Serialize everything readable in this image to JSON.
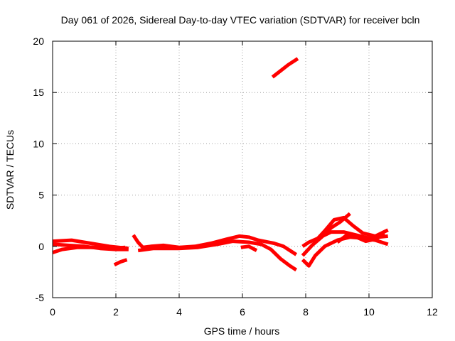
{
  "chart_data": {
    "type": "line",
    "title": "Day 061 of 2026, Sidereal Day-to-day VTEC variation (SDTVAR) for receiver bcln",
    "xlabel": "GPS time / hours",
    "ylabel": "SDTVAR / TECUs",
    "xlim": [
      0,
      12
    ],
    "ylim": [
      -5,
      20
    ],
    "xticks": [
      "0",
      "2",
      "4",
      "6",
      "8",
      "10",
      "12"
    ],
    "yticks": [
      "-5",
      "0",
      "5",
      "10",
      "15",
      "20"
    ],
    "grid": true,
    "color": "#ff0000",
    "series": [
      {
        "name": "trace-a",
        "points": [
          [
            0.0,
            0.2
          ],
          [
            0.5,
            0.1
          ],
          [
            1.0,
            0.0
          ],
          [
            1.5,
            -0.2
          ],
          [
            2.0,
            -0.3
          ],
          [
            2.4,
            -0.3
          ]
        ]
      },
      {
        "name": "trace-b",
        "points": [
          [
            0.0,
            -0.6
          ],
          [
            0.3,
            -0.3
          ],
          [
            0.8,
            -0.1
          ],
          [
            1.3,
            -0.1
          ],
          [
            1.8,
            -0.2
          ],
          [
            2.3,
            -0.1
          ]
        ]
      },
      {
        "name": "trace-c",
        "points": [
          [
            0.0,
            0.5
          ],
          [
            0.6,
            0.6
          ],
          [
            1.2,
            0.3
          ],
          [
            1.8,
            0.0
          ],
          [
            2.4,
            -0.2
          ]
        ]
      },
      {
        "name": "trace-d",
        "points": [
          [
            1.95,
            -1.8
          ],
          [
            2.15,
            -1.5
          ],
          [
            2.35,
            -1.3
          ]
        ]
      },
      {
        "name": "trace-e",
        "points": [
          [
            2.55,
            1.1
          ],
          [
            2.7,
            0.4
          ],
          [
            2.85,
            -0.1
          ],
          [
            3.1,
            0.0
          ],
          [
            3.5,
            0.1
          ],
          [
            4.0,
            -0.1
          ],
          [
            4.5,
            0.0
          ],
          [
            5.0,
            0.3
          ],
          [
            5.5,
            0.7
          ],
          [
            5.9,
            1.0
          ],
          [
            6.2,
            0.9
          ],
          [
            6.5,
            0.6
          ],
          [
            7.0,
            0.3
          ],
          [
            7.3,
            0.0
          ],
          [
            7.5,
            -0.4
          ],
          [
            7.7,
            -0.8
          ]
        ]
      },
      {
        "name": "trace-f",
        "points": [
          [
            2.7,
            -0.4
          ],
          [
            3.2,
            -0.2
          ],
          [
            4.0,
            -0.2
          ],
          [
            4.6,
            -0.1
          ],
          [
            5.2,
            0.2
          ],
          [
            5.7,
            0.5
          ],
          [
            6.2,
            0.4
          ],
          [
            6.6,
            0.2
          ],
          [
            6.9,
            -0.3
          ],
          [
            7.2,
            -1.2
          ],
          [
            7.5,
            -1.9
          ],
          [
            7.7,
            -2.3
          ]
        ]
      },
      {
        "name": "trace-g",
        "points": [
          [
            5.95,
            -0.1
          ],
          [
            6.2,
            0.0
          ],
          [
            6.45,
            -0.4
          ]
        ]
      },
      {
        "name": "trace-h",
        "points": [
          [
            6.95,
            16.5
          ],
          [
            7.2,
            17.1
          ],
          [
            7.45,
            17.7
          ],
          [
            7.75,
            18.3
          ]
        ]
      },
      {
        "name": "trace-i",
        "points": [
          [
            7.9,
            -1.3
          ],
          [
            8.1,
            -1.9
          ],
          [
            8.3,
            -0.9
          ],
          [
            8.6,
            0.0
          ],
          [
            9.0,
            0.6
          ],
          [
            9.4,
            0.9
          ],
          [
            9.8,
            0.8
          ],
          [
            10.2,
            0.6
          ],
          [
            10.6,
            0.2
          ]
        ]
      },
      {
        "name": "trace-j",
        "points": [
          [
            7.9,
            0.0
          ],
          [
            8.1,
            0.4
          ],
          [
            8.4,
            0.8
          ],
          [
            8.8,
            1.4
          ],
          [
            9.2,
            1.4
          ],
          [
            9.6,
            1.1
          ],
          [
            10.0,
            0.8
          ],
          [
            10.3,
            0.9
          ],
          [
            10.6,
            1.0
          ]
        ]
      },
      {
        "name": "trace-k",
        "points": [
          [
            7.9,
            -0.9
          ],
          [
            8.2,
            0.1
          ],
          [
            8.5,
            0.9
          ],
          [
            8.8,
            1.8
          ],
          [
            9.1,
            2.4
          ],
          [
            9.4,
            3.2
          ]
        ]
      },
      {
        "name": "trace-l",
        "points": [
          [
            8.3,
            0.5
          ],
          [
            8.6,
            1.5
          ],
          [
            8.9,
            2.6
          ],
          [
            9.2,
            2.8
          ],
          [
            9.5,
            2.0
          ],
          [
            9.8,
            1.3
          ],
          [
            10.2,
            1.0
          ],
          [
            10.6,
            1.6
          ]
        ]
      },
      {
        "name": "trace-m",
        "points": [
          [
            9.0,
            0.4
          ],
          [
            9.3,
            1.1
          ],
          [
            9.6,
            0.9
          ],
          [
            9.9,
            0.5
          ],
          [
            10.2,
            0.7
          ],
          [
            10.5,
            1.2
          ]
        ]
      }
    ]
  }
}
